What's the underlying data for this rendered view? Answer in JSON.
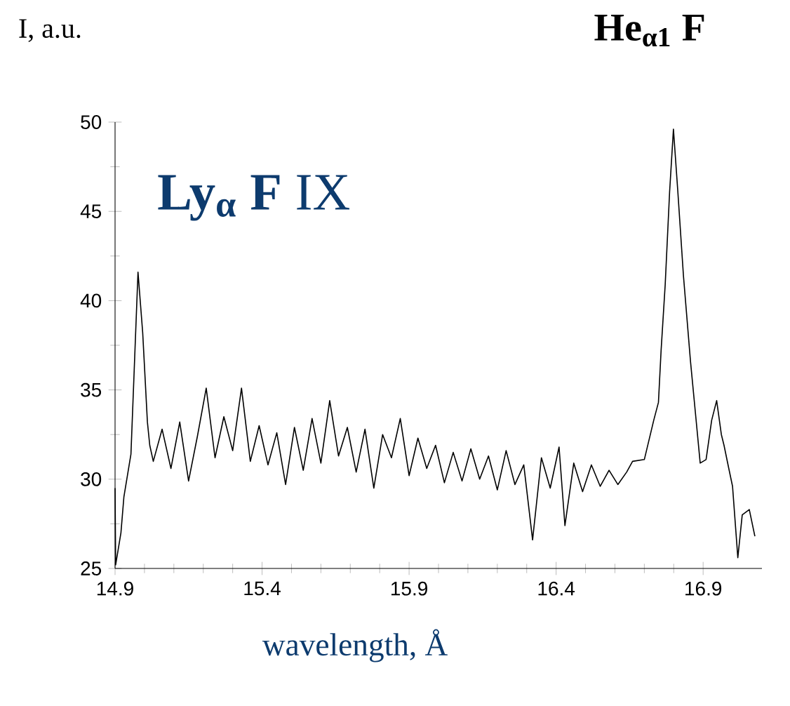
{
  "chart_data": {
    "type": "line",
    "xlabel": "wavelength, Å",
    "ylabel": "I, a.u.",
    "annotations": [
      "**Ly$_{α}$ F** IX",
      "**He$_{α1}$ F**"
    ],
    "xlim": [
      14.9,
      17.1
    ],
    "ylim": [
      25,
      50
    ],
    "xticks": [
      14.9,
      15.4,
      15.9,
      16.4,
      16.9
    ],
    "yticks": [
      25,
      30,
      35,
      40,
      45,
      50
    ],
    "series": [
      {
        "color": "#000000",
        "x": [
          14.9,
          14.902,
          14.91,
          14.92,
          14.93,
          14.954,
          14.978,
          14.994,
          15.01,
          15.018,
          15.03,
          15.06,
          15.09,
          15.12,
          15.15,
          15.18,
          15.21,
          15.24,
          15.27,
          15.3,
          15.33,
          15.36,
          15.39,
          15.42,
          15.45,
          15.48,
          15.51,
          15.54,
          15.57,
          15.6,
          15.63,
          15.66,
          15.69,
          15.72,
          15.75,
          15.78,
          15.81,
          15.84,
          15.87,
          15.9,
          15.93,
          15.96,
          15.99,
          16.02,
          16.05,
          16.08,
          16.11,
          16.14,
          16.17,
          16.2,
          16.23,
          16.26,
          16.29,
          16.32,
          16.35,
          16.38,
          16.41,
          16.43,
          16.46,
          16.49,
          16.52,
          16.55,
          16.58,
          16.61,
          16.64,
          16.66,
          16.7,
          16.732,
          16.748,
          16.757,
          16.771,
          16.786,
          16.799,
          16.814,
          16.833,
          16.857,
          16.875,
          16.89,
          16.91,
          16.929,
          16.946,
          16.962,
          16.971,
          16.986,
          17.0,
          17.018,
          17.033,
          17.057,
          17.076
        ],
        "values": [
          29.5,
          25.2,
          26.0,
          27.0,
          29.0,
          31.4,
          41.6,
          38.2,
          33.2,
          31.9,
          31.0,
          32.8,
          30.6,
          33.2,
          29.9,
          32.4,
          35.1,
          31.2,
          33.5,
          31.6,
          35.1,
          31.0,
          33.0,
          30.8,
          32.6,
          29.7,
          32.9,
          30.5,
          33.4,
          30.9,
          34.4,
          31.3,
          32.9,
          30.4,
          32.8,
          29.5,
          32.5,
          31.2,
          33.4,
          30.2,
          32.3,
          30.6,
          31.9,
          29.8,
          31.5,
          29.9,
          31.7,
          30.0,
          31.3,
          29.4,
          31.6,
          29.7,
          30.8,
          26.6,
          31.2,
          29.5,
          31.8,
          27.4,
          30.9,
          29.3,
          30.8,
          29.6,
          30.5,
          29.7,
          30.4,
          31.0,
          31.1,
          33.3,
          34.3,
          37.2,
          40.9,
          46.1,
          49.6,
          46.1,
          41.4,
          36.6,
          33.5,
          30.9,
          31.1,
          33.3,
          34.4,
          32.5,
          31.9,
          30.7,
          29.6,
          25.6,
          28.0,
          28.3,
          26.8
        ]
      }
    ]
  }
}
